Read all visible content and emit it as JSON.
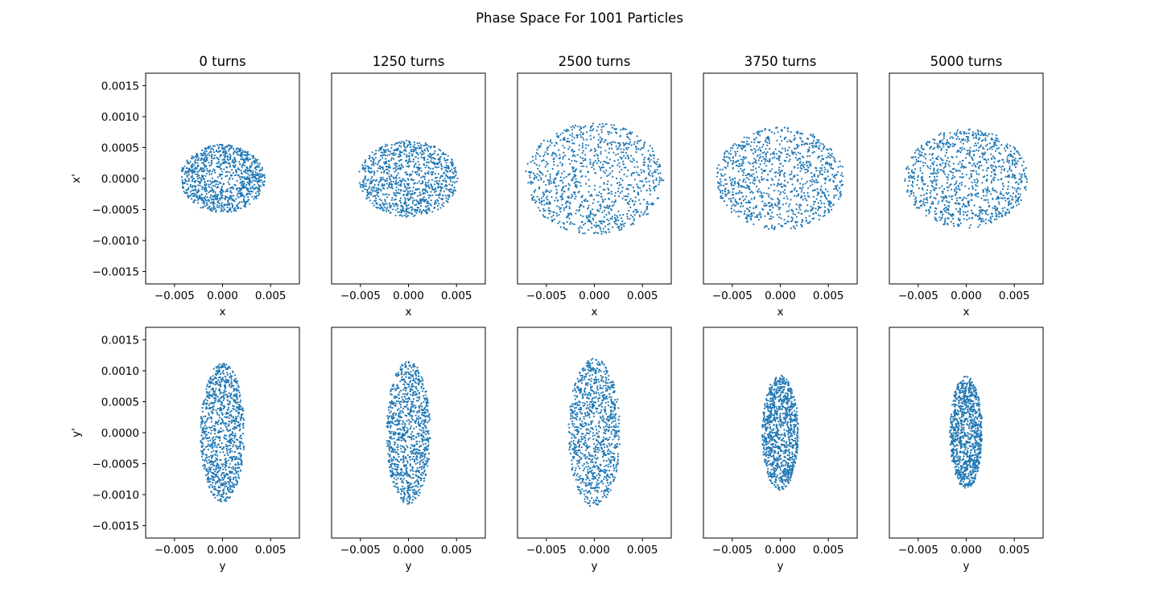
{
  "chart_data": {
    "type": "scatter",
    "title": "Phase Space For 1001 Particles",
    "num_particles": 1001,
    "marker_color": "#1f77b4",
    "rows": [
      {
        "key": "x",
        "xlabel": "x",
        "ylabel": "x'"
      },
      {
        "key": "y",
        "xlabel": "y",
        "ylabel": "y'"
      }
    ],
    "columns": [
      {
        "title": "0 turns",
        "turns": 0
      },
      {
        "title": "1250 turns",
        "turns": 1250
      },
      {
        "title": "2500 turns",
        "turns": 2500
      },
      {
        "title": "3750 turns",
        "turns": 3750
      },
      {
        "title": "5000 turns",
        "turns": 5000
      }
    ],
    "xlim": [
      -0.008,
      0.008
    ],
    "ylim": [
      -0.0017,
      0.0017
    ],
    "xticks": [
      -0.005,
      0.0,
      0.005
    ],
    "xtick_labels": [
      "−0.005",
      "0.000",
      "0.005"
    ],
    "yticks": [
      0.0015,
      0.001,
      0.0005,
      0.0,
      -0.0005,
      -0.001,
      -0.0015
    ],
    "ytick_labels": [
      "0.0015",
      "0.0010",
      "0.0005",
      "0.0000",
      "−0.0005",
      "−0.0010",
      "−0.0015"
    ],
    "distributions": {
      "x": [
        {
          "turns": 0,
          "x_half_width": 0.0044,
          "xp_half_width": 0.00055
        },
        {
          "turns": 1250,
          "x_half_width": 0.0052,
          "xp_half_width": 0.00062
        },
        {
          "turns": 2500,
          "x_half_width": 0.0072,
          "xp_half_width": 0.0009
        },
        {
          "turns": 3750,
          "x_half_width": 0.0067,
          "xp_half_width": 0.00083
        },
        {
          "turns": 5000,
          "x_half_width": 0.0064,
          "xp_half_width": 0.0008
        }
      ],
      "y": [
        {
          "turns": 0,
          "y_half_width": 0.0023,
          "yp_half_width": 0.00112
        },
        {
          "turns": 1250,
          "y_half_width": 0.0023,
          "yp_half_width": 0.00115
        },
        {
          "turns": 2500,
          "y_half_width": 0.0027,
          "yp_half_width": 0.0012
        },
        {
          "turns": 3750,
          "y_half_width": 0.0019,
          "yp_half_width": 0.00093
        },
        {
          "turns": 5000,
          "y_half_width": 0.0017,
          "yp_half_width": 0.00091
        }
      ]
    }
  }
}
